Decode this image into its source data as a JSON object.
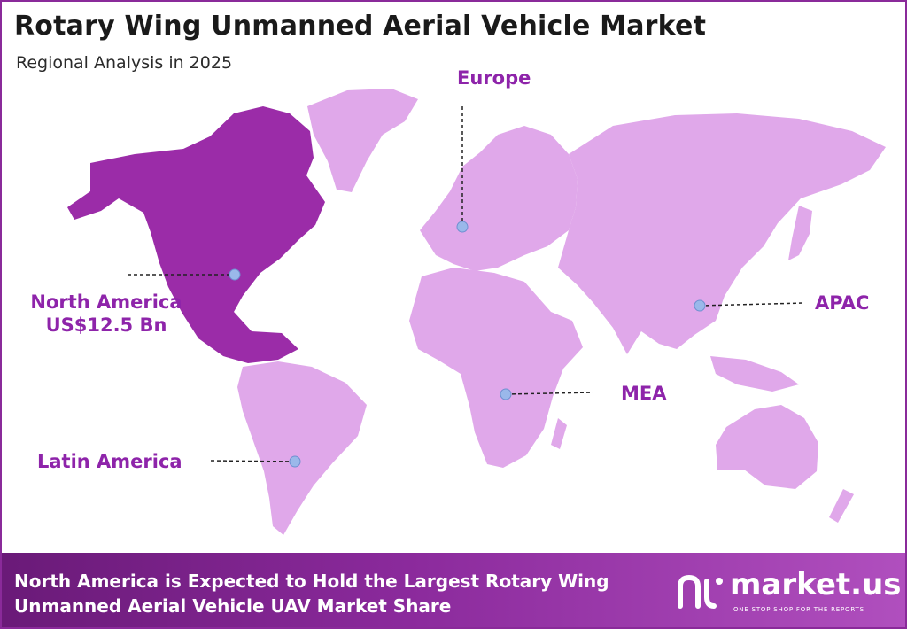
{
  "title": "Rotary Wing Unmanned Aerial Vehicle Market",
  "subtitle": "Regional Analysis in 2025",
  "regions": {
    "north_america": {
      "name": "North America",
      "value": "US$12.5 Bn"
    },
    "europe": {
      "name": "Europe"
    },
    "apac": {
      "name": "APAC"
    },
    "mea": {
      "name": "MEA"
    },
    "latin_america": {
      "name": "Latin America"
    }
  },
  "footer": {
    "line1": "North America is Expected to Hold the Largest Rotary Wing",
    "line2": "Unmanned Aerial Vehicle UAV Market  Share"
  },
  "brand": {
    "name": "market.us",
    "tagline": "ONE STOP SHOP FOR THE REPORTS"
  },
  "colors": {
    "highlight_region": "#9b2ca8",
    "other_regions": "#e0a8ea",
    "label": "#8e24aa",
    "marker": "#9ab8ea"
  }
}
